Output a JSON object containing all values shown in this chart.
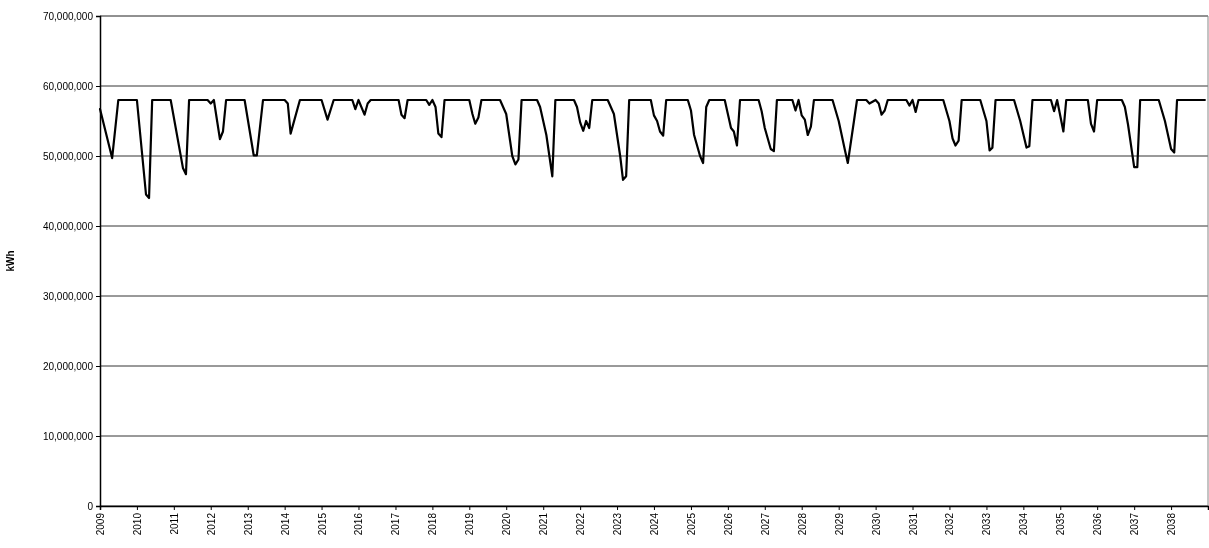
{
  "chart_data": {
    "type": "line",
    "ylabel": "kWh",
    "grid": "y",
    "marker": "none",
    "line_style": "solid",
    "xlim": [
      "2009",
      "2039"
    ],
    "xticks": [
      "2009",
      "2010",
      "2011",
      "2012",
      "2013",
      "2014",
      "2015",
      "2016",
      "2017",
      "2018",
      "2019",
      "2020",
      "2021",
      "2022",
      "2023",
      "2024",
      "2025",
      "2026",
      "2027",
      "2028",
      "2029",
      "2030",
      "2031",
      "2032",
      "2033",
      "2034",
      "2035",
      "2036",
      "2037",
      "2038"
    ],
    "ylim": [
      0,
      70000000
    ],
    "yticks": [
      0,
      {
        "value": 10000000,
        "label": "10,000,000"
      },
      {
        "value": 20000000,
        "label": "20,000,000"
      },
      {
        "value": 30000000,
        "label": "30,000,000"
      },
      {
        "value": 40000000,
        "label": "40,000,000"
      },
      {
        "value": 50000000,
        "label": "50,000,000"
      },
      {
        "value": 60000000,
        "label": "60,000,000"
      },
      {
        "value": 70000000,
        "label": "70,000,000"
      }
    ],
    "x": [
      "2009-01",
      "2009-05",
      "2009-07",
      "2010-01",
      "2010-04",
      "2010-05",
      "2010-06",
      "2010-12",
      "2011-04",
      "2011-05",
      "2011-06",
      "2011-12",
      "2012-01",
      "2012-02",
      "2012-04",
      "2012-05",
      "2012-06",
      "2012-12",
      "2013-03",
      "2013-04",
      "2013-06",
      "2014-01",
      "2014-02",
      "2014-03",
      "2014-06",
      "2015-01",
      "2015-03",
      "2015-05",
      "2015-11",
      "2015-12",
      "2016-01",
      "2016-03",
      "2016-04",
      "2016-05",
      "2017-02",
      "2017-03",
      "2017-04",
      "2017-05",
      "2017-11",
      "2017-12",
      "2018-01",
      "2018-02",
      "2018-03",
      "2018-04",
      "2018-05",
      "2019-01",
      "2019-02",
      "2019-03",
      "2019-04",
      "2019-05",
      "2019-11",
      "2020-01",
      "2020-03",
      "2020-04",
      "2020-05",
      "2020-06",
      "2020-11",
      "2020-12",
      "2021-02",
      "2021-04",
      "2021-05",
      "2021-11",
      "2021-12",
      "2022-01",
      "2022-02",
      "2022-03",
      "2022-04",
      "2022-05",
      "2022-10",
      "2022-12",
      "2023-02",
      "2023-03",
      "2023-04",
      "2023-05",
      "2023-12",
      "2024-01",
      "2024-02",
      "2024-03",
      "2024-04",
      "2024-05",
      "2024-12",
      "2025-01",
      "2025-02",
      "2025-04",
      "2025-05",
      "2025-06",
      "2025-07",
      "2025-12",
      "2026-01",
      "2026-02",
      "2026-03",
      "2026-04",
      "2026-05",
      "2026-11",
      "2026-12",
      "2027-01",
      "2027-03",
      "2027-04",
      "2027-05",
      "2027-10",
      "2027-11",
      "2027-12",
      "2028-01",
      "2028-02",
      "2028-03",
      "2028-04",
      "2028-05",
      "2028-11",
      "2029-01",
      "2029-03",
      "2029-04",
      "2029-06",
      "2029-07",
      "2029-10",
      "2029-11",
      "2030-01",
      "2030-02",
      "2030-03",
      "2030-04",
      "2030-05",
      "2030-11",
      "2030-12",
      "2031-01",
      "2031-02",
      "2031-03",
      "2031-11",
      "2032-01",
      "2032-02",
      "2032-03",
      "2032-04",
      "2032-05",
      "2032-11",
      "2033-01",
      "2033-02",
      "2033-03",
      "2033-04",
      "2033-10",
      "2033-12",
      "2034-02",
      "2034-03",
      "2034-04",
      "2034-10",
      "2034-11",
      "2034-12",
      "2035-02",
      "2035-03",
      "2035-10",
      "2035-11",
      "2035-12",
      "2036-01",
      "2036-09",
      "2036-10",
      "2036-11",
      "2037-01",
      "2037-02",
      "2037-03",
      "2037-09",
      "2037-11",
      "2038-01",
      "2038-02",
      "2038-03",
      "2038-12"
    ],
    "series": [
      {
        "color": "#000000",
        "values": [
          56700000,
          49700000,
          58000000,
          58000000,
          44500000,
          44000000,
          58000000,
          58000000,
          48300000,
          47400000,
          58000000,
          58000000,
          57500000,
          58000000,
          52400000,
          53500000,
          58000000,
          58000000,
          50100000,
          50100000,
          58000000,
          58000000,
          57500000,
          53200000,
          58000000,
          58000000,
          55200000,
          58000000,
          58000000,
          56700000,
          58000000,
          55900000,
          57500000,
          58000000,
          58000000,
          55900000,
          55400000,
          58000000,
          58000000,
          57300000,
          58000000,
          57000000,
          53200000,
          52700000,
          58000000,
          58000000,
          56000000,
          54600000,
          55500000,
          58000000,
          58000000,
          56000000,
          50000000,
          48800000,
          49500000,
          58000000,
          58000000,
          57000000,
          53000000,
          47100000,
          58000000,
          58000000,
          57000000,
          54800000,
          53600000,
          55000000,
          54000000,
          58000000,
          58000000,
          56000000,
          50000000,
          46600000,
          47100000,
          58000000,
          58000000,
          55800000,
          55000000,
          53500000,
          52900000,
          58000000,
          58000000,
          56500000,
          53000000,
          50000000,
          49000000,
          57000000,
          58000000,
          58000000,
          56000000,
          54000000,
          53500000,
          51500000,
          58000000,
          58000000,
          56400000,
          54000000,
          51000000,
          50700000,
          58000000,
          58000000,
          56500000,
          58000000,
          55800000,
          55200000,
          53000000,
          54200000,
          58000000,
          58000000,
          55000000,
          51000000,
          49000000,
          55000000,
          58000000,
          58000000,
          57500000,
          58000000,
          57500000,
          55900000,
          56500000,
          58000000,
          58000000,
          57200000,
          58000000,
          56300000,
          58000000,
          58000000,
          55000000,
          52500000,
          51500000,
          52200000,
          58000000,
          58000000,
          55000000,
          50800000,
          51200000,
          58000000,
          58000000,
          55000000,
          51200000,
          51400000,
          58000000,
          58000000,
          56400000,
          58000000,
          53500000,
          58000000,
          58000000,
          54600000,
          53500000,
          58000000,
          58000000,
          57000000,
          54500000,
          48400000,
          48400000,
          58000000,
          58000000,
          55000000,
          51000000,
          50500000,
          58000000,
          58000000
        ]
      }
    ]
  }
}
